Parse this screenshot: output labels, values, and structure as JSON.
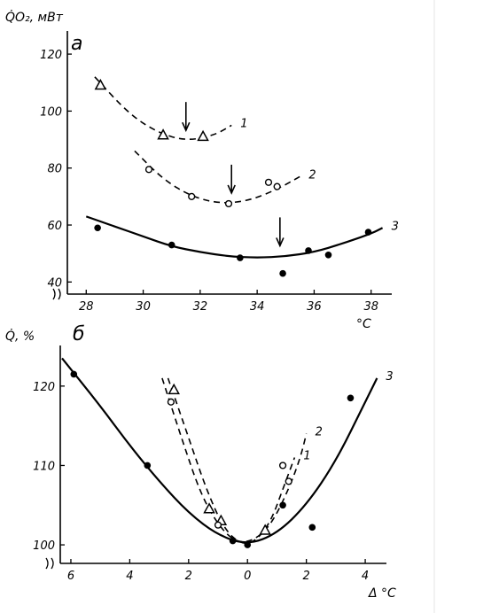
{
  "chart_data": [
    {
      "type": "scatter",
      "panel_label": "а",
      "ylabel": "Q̇O₂, мВт",
      "xlabel": "°C",
      "xlim": [
        27.4,
        38.6
      ],
      "ylim": [
        37,
        125
      ],
      "xticks": [
        28,
        30,
        32,
        34,
        36,
        38
      ],
      "yticks": [
        40,
        60,
        80,
        100,
        120
      ],
      "grid": false,
      "series": [
        {
          "name": "1",
          "marker": "triangle",
          "line": "dashed",
          "points": [
            [
              28.5,
              109
            ],
            [
              30.7,
              91.5
            ],
            [
              32.1,
              91
            ]
          ],
          "curve": [
            [
              28.3,
              112
            ],
            [
              29.5,
              99
            ],
            [
              30.5,
              92.5
            ],
            [
              31.5,
              89.5
            ],
            [
              32.5,
              91.5
            ],
            [
              33.1,
              95
            ]
          ],
          "arrow_x": 31.5
        },
        {
          "name": "2",
          "marker": "open-circle",
          "line": "dashed",
          "points": [
            [
              30.2,
              79.5
            ],
            [
              31.7,
              70
            ],
            [
              33.0,
              67.5
            ],
            [
              34.4,
              75
            ],
            [
              34.7,
              73.5
            ]
          ],
          "curve": [
            [
              29.7,
              86
            ],
            [
              30.7,
              76
            ],
            [
              31.7,
              70
            ],
            [
              32.7,
              67.5
            ],
            [
              33.7,
              68.5
            ],
            [
              34.7,
              72.5
            ],
            [
              35.5,
              77
            ]
          ],
          "arrow_x": 33.1
        },
        {
          "name": "3",
          "marker": "filled-circle",
          "line": "solid",
          "points": [
            [
              28.4,
              59
            ],
            [
              31.0,
              53
            ],
            [
              33.4,
              48.5
            ],
            [
              34.9,
              43
            ],
            [
              35.8,
              51
            ],
            [
              36.5,
              49.5
            ],
            [
              37.9,
              57.5
            ]
          ],
          "curve": [
            [
              28.0,
              63
            ],
            [
              29,
              59.5
            ],
            [
              30,
              56
            ],
            [
              31,
              52.5
            ],
            [
              32,
              50.5
            ],
            [
              33,
              49
            ],
            [
              34,
              48.5
            ],
            [
              35,
              49
            ],
            [
              36,
              50.5
            ],
            [
              37,
              53.5
            ],
            [
              38,
              57
            ],
            [
              38.4,
              59
            ]
          ],
          "arrow_x": 34.8
        }
      ]
    },
    {
      "type": "scatter",
      "panel_label": "б",
      "ylabel": "Q̇, %",
      "xlabel": "Δ °C",
      "xlim": [
        -6.3,
        4.6
      ],
      "ylim": [
        98,
        124
      ],
      "xticks": [
        -6,
        -4,
        -2,
        0,
        2,
        4
      ],
      "xticklabels": [
        "6",
        "4",
        "2",
        "0",
        "2",
        "4"
      ],
      "yticks": [
        100,
        110,
        120
      ],
      "grid": false,
      "series": [
        {
          "name": "1",
          "marker": "triangle",
          "line": "dashed",
          "points": [
            [
              -2.5,
              119.5
            ],
            [
              -1.3,
              104.5
            ],
            [
              -0.9,
              103
            ],
            [
              0.6,
              101.8
            ]
          ],
          "curve": [
            [
              -2.7,
              121
            ],
            [
              -2.0,
              113.5
            ],
            [
              -1.4,
              107
            ],
            [
              -0.8,
              102
            ],
            [
              -0.2,
              100
            ],
            [
              0.3,
              100.5
            ],
            [
              0.8,
              103
            ],
            [
              1.2,
              107
            ],
            [
              1.6,
              111
            ]
          ]
        },
        {
          "name": "2",
          "marker": "open-circle",
          "line": "dashed",
          "points": [
            [
              -2.6,
              118
            ],
            [
              -1.0,
              102.5
            ],
            [
              1.2,
              110
            ],
            [
              1.4,
              108
            ]
          ],
          "curve": [
            [
              -2.9,
              121
            ],
            [
              -2.2,
              113
            ],
            [
              -1.6,
              106.5
            ],
            [
              -1.0,
              102.5
            ],
            [
              -0.4,
              100.3
            ],
            [
              0.2,
              100.5
            ],
            [
              0.8,
              102.5
            ],
            [
              1.4,
              107
            ],
            [
              1.8,
              111
            ],
            [
              2.0,
              114
            ]
          ]
        },
        {
          "name": "3",
          "marker": "filled-circle",
          "line": "solid",
          "points": [
            [
              -5.9,
              121.5
            ],
            [
              -3.4,
              110
            ],
            [
              -0.5,
              100.5
            ],
            [
              0.0,
              100
            ],
            [
              1.2,
              105
            ],
            [
              2.2,
              102.2
            ],
            [
              3.5,
              118.5
            ]
          ],
          "curve": [
            [
              -6.3,
              123.5
            ],
            [
              -5,
              117.5
            ],
            [
              -4,
              112.5
            ],
            [
              -3,
              108
            ],
            [
              -2,
              104
            ],
            [
              -1,
              101.2
            ],
            [
              0,
              100
            ],
            [
              1,
              101.4
            ],
            [
              2,
              105
            ],
            [
              3,
              110.5
            ],
            [
              4,
              118
            ],
            [
              4.4,
              121
            ]
          ]
        }
      ]
    }
  ]
}
